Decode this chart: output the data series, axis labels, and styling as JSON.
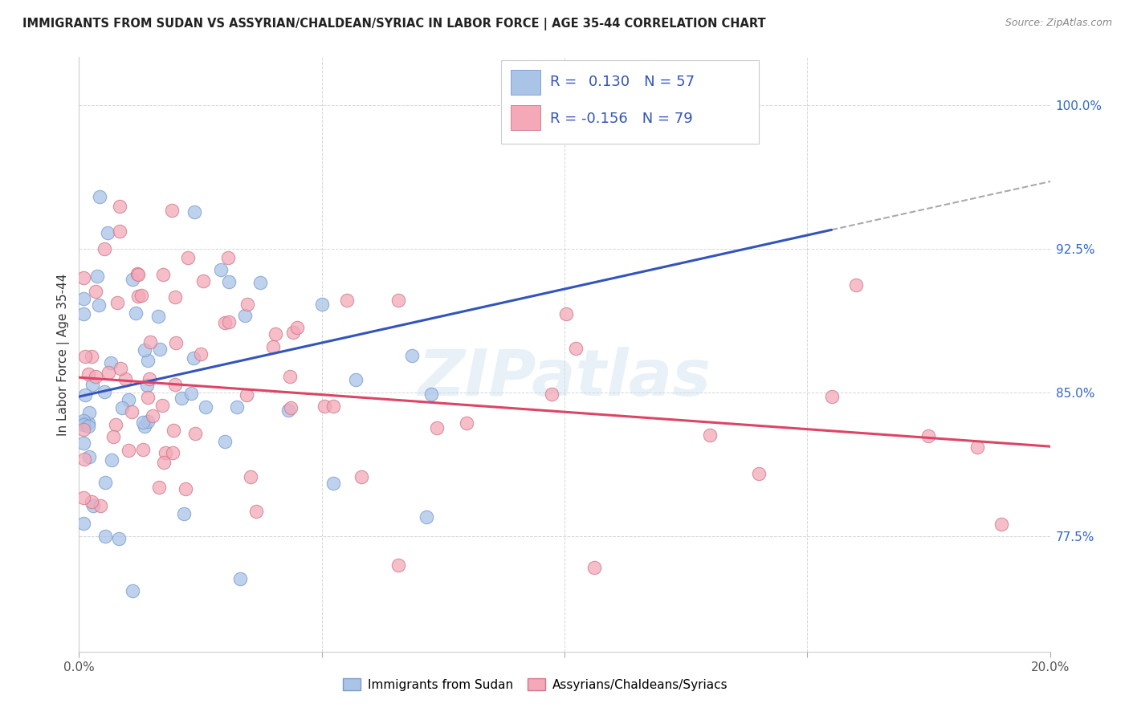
{
  "title": "IMMIGRANTS FROM SUDAN VS ASSYRIAN/CHALDEAN/SYRIAC IN LABOR FORCE | AGE 35-44 CORRELATION CHART",
  "source": "Source: ZipAtlas.com",
  "ylabel": "In Labor Force | Age 35-44",
  "xlim": [
    0.0,
    0.2
  ],
  "ylim": [
    0.715,
    1.025
  ],
  "ytick_right": [
    1.0,
    0.925,
    0.85,
    0.775
  ],
  "ytick_right_labels": [
    "100.0%",
    "92.5%",
    "85.0%",
    "77.5%"
  ],
  "background_color": "#ffffff",
  "grid_color": "#cccccc",
  "series1_color": "#aac4e8",
  "series1_edge": "#7799cc",
  "series2_color": "#f4a8b8",
  "series2_edge": "#cc7788",
  "trend1_color": "#3355bb",
  "trend2_color": "#dd4466",
  "trend_dashed_color": "#aaaaaa",
  "R1": 0.13,
  "N1": 57,
  "R2": -0.156,
  "N2": 79,
  "legend_label1": "Immigrants from Sudan",
  "legend_label2": "Assyrians/Chaldeans/Syriacs",
  "watermark": "ZIPatlas",
  "blue_trend": [
    0.0,
    0.848,
    0.155,
    0.935
  ],
  "blue_dashed": [
    0.155,
    0.935,
    0.205,
    0.963
  ],
  "pink_trend": [
    0.0,
    0.858,
    0.2,
    0.822
  ]
}
